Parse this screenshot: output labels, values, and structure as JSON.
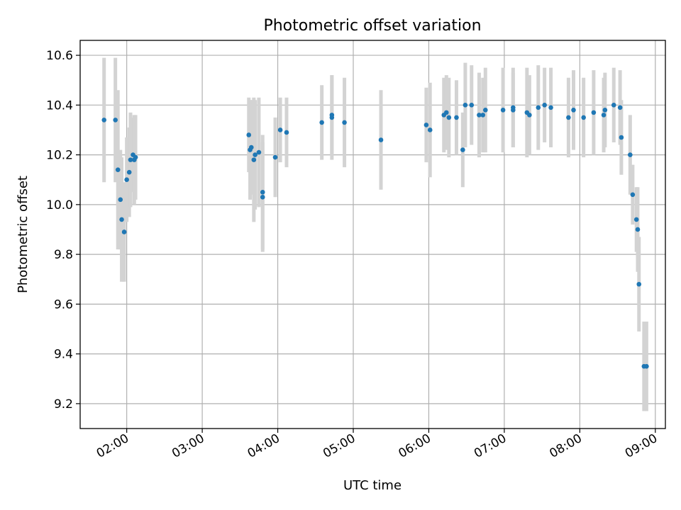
{
  "chart_data": {
    "type": "scatter",
    "title": "Photometric offset variation",
    "xlabel": "UTC time",
    "ylabel": "Photometric offset",
    "x_unit": "time (HH:MM)",
    "xlim": [
      "01:23",
      "09:08"
    ],
    "ylim": [
      9.1,
      10.66
    ],
    "x_ticks": [
      "02:00",
      "03:00",
      "04:00",
      "05:00",
      "06:00",
      "07:00",
      "08:00",
      "09:00"
    ],
    "y_ticks": [
      9.2,
      9.4,
      9.6,
      9.8,
      10.0,
      10.2,
      10.4,
      10.6
    ],
    "y_tick_labels": [
      "9.2",
      "9.4",
      "9.6",
      "9.8",
      "10.0",
      "10.2",
      "10.4",
      "10.6"
    ],
    "grid": true,
    "colors": {
      "point": "#1f77b4",
      "errorbar": "#d3d3d3"
    },
    "series": [
      {
        "x": [
          "01:42",
          "01:51",
          "01:53",
          "01:55",
          "01:56",
          "01:58",
          "02:00",
          "02:02",
          "02:03",
          "02:05",
          "02:06",
          "02:07",
          "03:37",
          "03:38",
          "03:39",
          "03:41",
          "03:42",
          "03:45",
          "03:48",
          "03:48",
          "03:58",
          "04:02",
          "04:07",
          "04:35",
          "04:43",
          "04:43",
          "04:53",
          "05:22",
          "05:58",
          "06:01",
          "06:12",
          "06:14",
          "06:16",
          "06:22",
          "06:27",
          "06:29",
          "06:34",
          "06:40",
          "06:43",
          "06:45",
          "06:59",
          "07:07",
          "07:07",
          "07:18",
          "07:20",
          "07:27",
          "07:32",
          "07:37",
          "07:51",
          "07:55",
          "08:03",
          "08:11",
          "08:19",
          "08:20",
          "08:27",
          "08:32",
          "08:33",
          "08:40",
          "08:42",
          "08:45",
          "08:46",
          "08:47",
          "08:51",
          "08:53"
        ],
        "y": [
          10.34,
          10.34,
          10.14,
          10.02,
          9.94,
          9.89,
          10.1,
          10.13,
          10.18,
          10.2,
          10.18,
          10.19,
          10.28,
          10.22,
          10.23,
          10.18,
          10.2,
          10.21,
          10.05,
          10.03,
          10.19,
          10.3,
          10.29,
          10.33,
          10.35,
          10.36,
          10.33,
          10.26,
          10.32,
          10.3,
          10.36,
          10.37,
          10.35,
          10.35,
          10.22,
          10.4,
          10.4,
          10.36,
          10.36,
          10.38,
          10.38,
          10.39,
          10.38,
          10.37,
          10.36,
          10.39,
          10.4,
          10.39,
          10.35,
          10.38,
          10.35,
          10.37,
          10.36,
          10.38,
          10.4,
          10.39,
          10.27,
          10.2,
          10.04,
          9.94,
          9.9,
          9.68,
          9.35,
          9.35
        ],
        "yerr": [
          0.25,
          0.25,
          0.32,
          0.2,
          0.25,
          0.2,
          0.17,
          0.18,
          0.19,
          0.15,
          0.18,
          0.17,
          0.15,
          0.2,
          0.19,
          0.25,
          0.22,
          0.22,
          0.23,
          0.22,
          0.16,
          0.13,
          0.14,
          0.15,
          0.17,
          0.16,
          0.18,
          0.2,
          0.15,
          0.19,
          0.15,
          0.15,
          0.16,
          0.15,
          0.15,
          0.17,
          0.16,
          0.17,
          0.15,
          0.17,
          0.17,
          0.16,
          0.15,
          0.18,
          0.16,
          0.17,
          0.15,
          0.16,
          0.16,
          0.16,
          0.16,
          0.17,
          0.15,
          0.15,
          0.15,
          0.15,
          0.15,
          0.16,
          0.12,
          0.13,
          0.17,
          0.19,
          0.18,
          0.18
        ]
      }
    ]
  }
}
